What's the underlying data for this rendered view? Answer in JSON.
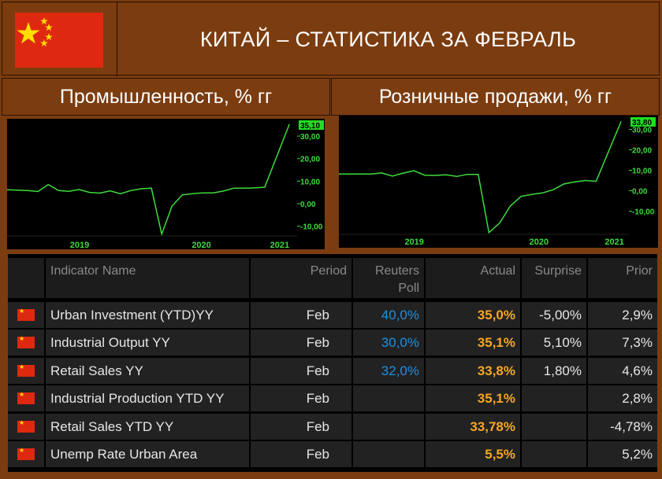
{
  "header": {
    "title": "КИТАЙ – СТАТИСТИКА ЗА ФЕВРАЛЬ",
    "flag_icon": "china-flag-icon",
    "colors": {
      "background": "#7b3c10",
      "flag_red": "#de2910",
      "flag_star": "#ffde00"
    }
  },
  "charts_titles": {
    "left": "Промышленность, % гг",
    "right": "Розничные продажи, % гг"
  },
  "chart_data": [
    {
      "type": "line",
      "title": "Промышленность, % гг",
      "x_labels": [
        "2019",
        "2020",
        "2021"
      ],
      "y_ticks": [
        "30,00",
        "20,00",
        "10,00",
        "0,00",
        "-10,00"
      ],
      "ylim": [
        -14,
        37
      ],
      "last_value_label": "35,10",
      "line_color": "#3cdc3c",
      "series": [
        {
          "values": [
            6.2,
            6.0,
            5.8,
            5.4,
            8.5,
            5.8,
            5.5,
            6.3,
            5.0,
            4.7,
            5.7,
            4.4,
            5.8,
            6.6,
            6.9,
            -13.5,
            -1.1,
            3.9,
            4.4,
            4.8,
            4.8,
            5.6,
            6.9,
            6.9,
            7.0,
            7.3,
            35.1
          ]
        }
      ]
    },
    {
      "type": "line",
      "title": "Розничные продажи, % гг",
      "x_labels": [
        "2019",
        "2020",
        "2021"
      ],
      "y_ticks": [
        "30,00",
        "20,00",
        "10,00",
        "0,00",
        "-10,00"
      ],
      "ylim": [
        -21,
        36
      ],
      "last_value_label": "33,80",
      "line_color": "#3cdc3c",
      "series": [
        {
          "values": [
            8.2,
            8.2,
            8.2,
            8.2,
            8.7,
            7.2,
            8.6,
            9.8,
            7.6,
            7.5,
            7.8,
            7.0,
            8.0,
            8.0,
            -20.5,
            -15.8,
            -7.5,
            -2.8,
            -1.8,
            -1.1,
            0.5,
            3.3,
            4.3,
            5.0,
            4.6,
            33.8
          ]
        }
      ]
    }
  ],
  "table": {
    "headers": {
      "name": "Indicator Name",
      "period": "Period",
      "poll_line1": "Reuters",
      "poll_line2": "Poll",
      "actual": "Actual",
      "surprise": "Surprise",
      "prior": "Prior"
    },
    "rows": [
      {
        "name": "Urban Investment (YTD)YY",
        "period": "Feb",
        "poll": "40,0%",
        "actual": "35,0%",
        "surprise": "-5,00%",
        "prior": "2,9%"
      },
      {
        "name": "Industrial Output YY",
        "period": "Feb",
        "poll": "30,0%",
        "actual": "35,1%",
        "surprise": "5,10%",
        "prior": "7,3%"
      },
      {
        "name": "Retail Sales YY",
        "period": "Feb",
        "poll": "32,0%",
        "actual": "33,8%",
        "surprise": "1,80%",
        "prior": "4,6%"
      },
      {
        "name": "Industrial Production YTD YY",
        "period": "Feb",
        "poll": "",
        "actual": "35,1%",
        "surprise": "",
        "prior": "2,8%"
      },
      {
        "name": "Retail Sales YTD YY",
        "period": "Feb",
        "poll": "",
        "actual": "33,78%",
        "surprise": "",
        "prior": "-4,78%"
      },
      {
        "name": "Unemp Rate Urban Area",
        "period": "Feb",
        "poll": "",
        "actual": "5,5%",
        "surprise": "",
        "prior": "5,2%"
      }
    ]
  }
}
